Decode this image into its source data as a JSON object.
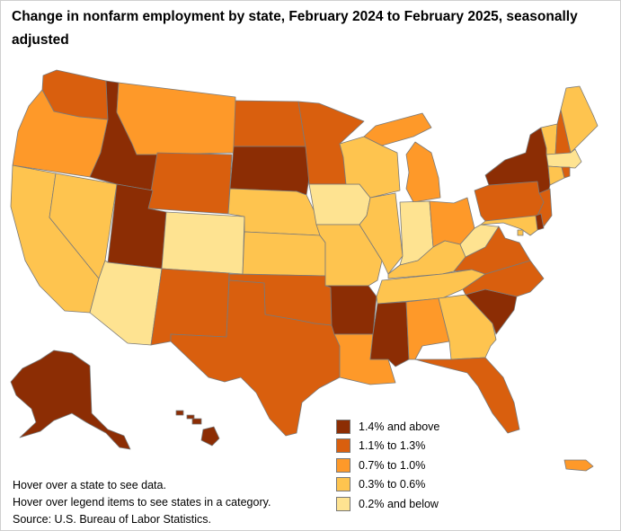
{
  "title": "Change in nonfarm employment by state, February 2024 to February 2025, seasonally adjusted",
  "legend": [
    {
      "label": "1.4% and above",
      "color": "#8c2d04"
    },
    {
      "label": "1.1% to 1.3%",
      "color": "#d95f0e"
    },
    {
      "label": "0.7% to 1.0%",
      "color": "#fe9929"
    },
    {
      "label": "0.3% to 0.6%",
      "color": "#fec44f"
    },
    {
      "label": "0.2% and below",
      "color": "#fee391"
    }
  ],
  "notes": {
    "hover_state": "Hover over a state to see data.",
    "hover_legend": "Hover over legend items to see states in a category.",
    "source": "Source: U.S. Bureau of Labor Statistics."
  },
  "categories": {
    "WA": 1,
    "OR": 2,
    "CA": 3,
    "NV": 3,
    "ID": 0,
    "MT": 2,
    "WY": 1,
    "UT": 0,
    "AZ": 4,
    "CO": 4,
    "NM": 1,
    "ND": 1,
    "SD": 0,
    "NE": 3,
    "KS": 3,
    "OK": 1,
    "TX": 1,
    "MN": 1,
    "IA": 4,
    "MO": 3,
    "AR": 0,
    "LA": 2,
    "WI": 3,
    "IL": 3,
    "MI": 2,
    "IN": 4,
    "OH": 2,
    "KY": 3,
    "TN": 3,
    "MS": 0,
    "AL": 2,
    "GA": 3,
    "FL": 1,
    "SC": 0,
    "NC": 1,
    "VA": 1,
    "WV": 4,
    "PA": 1,
    "NY": 0,
    "VT": 3,
    "NH": 1,
    "ME": 3,
    "MA": 4,
    "RI": 1,
    "CT": 3,
    "NJ": 1,
    "DE": 0,
    "MD": 3,
    "DC": 3,
    "AK": 0,
    "HI": 0,
    "PR": 2
  }
}
